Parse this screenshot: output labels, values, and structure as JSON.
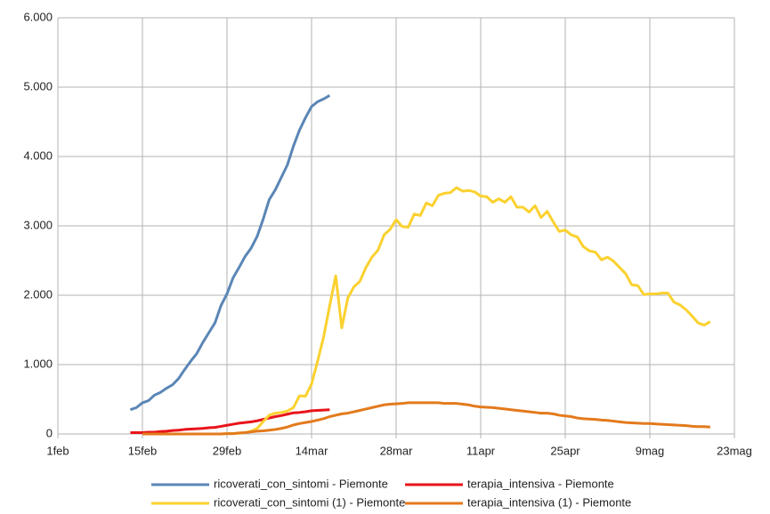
{
  "chart_data": {
    "type": "line",
    "x": [
      12,
      13,
      14,
      15,
      16,
      17,
      18,
      19,
      20,
      21,
      22,
      23,
      24,
      25,
      26,
      27,
      28,
      29,
      30,
      31,
      32,
      33,
      34,
      35,
      36,
      37,
      38,
      39,
      40,
      41,
      42,
      43,
      44,
      45,
      46,
      47,
      48,
      49,
      50,
      51,
      52,
      53,
      54,
      55,
      56,
      57,
      58,
      59,
      60,
      61,
      62,
      63,
      64,
      65,
      66,
      67,
      68,
      69,
      70,
      71,
      72,
      73,
      74,
      75,
      76,
      77,
      78,
      79,
      80,
      81,
      82,
      83,
      84,
      85,
      86,
      87,
      88,
      89,
      90,
      91,
      92,
      93,
      94,
      95,
      96,
      97,
      98,
      99,
      100,
      101,
      102,
      103,
      104,
      105,
      106,
      107,
      108
    ],
    "series": [
      {
        "name": "ricoverati_con_sintomi - Piemonte",
        "color": "#5a86b6",
        "values": [
          350,
          380,
          450,
          480,
          560,
          600,
          660,
          710,
          800,
          930,
          1050,
          1160,
          1320,
          1460,
          1600,
          1850,
          2020,
          2250,
          2400,
          2560,
          2680,
          2850,
          3100,
          3380,
          3520,
          3700,
          3880,
          4150,
          4380,
          4560,
          4720,
          4790,
          4830,
          4880,
          null,
          null,
          null,
          null,
          null,
          null,
          null,
          null,
          null,
          null,
          null,
          null,
          null,
          null,
          null,
          null,
          null,
          null,
          null,
          null,
          null,
          null,
          null,
          null,
          null,
          null,
          null,
          null,
          null,
          null,
          null,
          null,
          null,
          null,
          null,
          null,
          null,
          null,
          null,
          null,
          null,
          null,
          null,
          null,
          null,
          null,
          null,
          null,
          null,
          null,
          null,
          null,
          null,
          null,
          null,
          null,
          null,
          null,
          null,
          null,
          null,
          null,
          null
        ]
      },
      {
        "name": "terapia_intensiva - Piemonte",
        "color": "#e8141b",
        "values": [
          20,
          20,
          20,
          25,
          25,
          35,
          40,
          50,
          55,
          65,
          70,
          75,
          80,
          90,
          95,
          110,
          125,
          140,
          155,
          165,
          175,
          190,
          210,
          230,
          250,
          265,
          285,
          305,
          310,
          320,
          335,
          340,
          345,
          350,
          null,
          null,
          null,
          null,
          null,
          null,
          null,
          null,
          null,
          null,
          null,
          null,
          null,
          null,
          null,
          null,
          null,
          null,
          null,
          null,
          null,
          null,
          null,
          null,
          null,
          null,
          null,
          null,
          null,
          null,
          null,
          null,
          null,
          null,
          null,
          null,
          null,
          null,
          null,
          null,
          null,
          null,
          null,
          null,
          null,
          null,
          null,
          null,
          null,
          null,
          null,
          null,
          null,
          null,
          null,
          null,
          null,
          null,
          null,
          null,
          null,
          null,
          null
        ]
      },
      {
        "name": "ricoverati_con_sintomi (1) - Piemonte",
        "color": "#fbd12f",
        "values": [
          null,
          null,
          0,
          0,
          0,
          0,
          0,
          0,
          0,
          0,
          0,
          0,
          0,
          0,
          0,
          0,
          5,
          5,
          10,
          20,
          40,
          80,
          180,
          270,
          300,
          310,
          330,
          380,
          550,
          545,
          720,
          1050,
          1400,
          1850,
          2280,
          1530,
          1960,
          2120,
          2200,
          2400,
          2550,
          2650,
          2870,
          2950,
          3090,
          2990,
          2980,
          3170,
          3150,
          3330,
          3290,
          3440,
          3470,
          3480,
          3550,
          3500,
          3510,
          3490,
          3430,
          3420,
          3340,
          3390,
          3340,
          3420,
          3270,
          3270,
          3200,
          3290,
          3120,
          3210,
          3060,
          2920,
          2940,
          2870,
          2840,
          2700,
          2640,
          2620,
          2510,
          2550,
          2490,
          2400,
          2310,
          2150,
          2140,
          2010,
          2020,
          2020,
          2030,
          2030,
          1900,
          1860,
          1790,
          1700,
          1600,
          1570,
          1620
        ]
      },
      {
        "name": "terapia_intensiva (1) - Piemonte",
        "color": "#e37a1c",
        "values": [
          null,
          null,
          0,
          0,
          0,
          0,
          0,
          0,
          0,
          0,
          0,
          0,
          0,
          0,
          0,
          0,
          5,
          5,
          15,
          20,
          30,
          40,
          45,
          55,
          65,
          80,
          100,
          130,
          150,
          165,
          180,
          200,
          220,
          250,
          270,
          290,
          300,
          320,
          340,
          360,
          380,
          400,
          420,
          430,
          435,
          440,
          450,
          450,
          450,
          450,
          450,
          450,
          440,
          440,
          440,
          430,
          420,
          400,
          390,
          385,
          380,
          370,
          360,
          350,
          340,
          330,
          320,
          310,
          300,
          300,
          290,
          270,
          260,
          250,
          230,
          220,
          215,
          210,
          200,
          195,
          185,
          175,
          165,
          160,
          155,
          150,
          150,
          145,
          140,
          135,
          130,
          125,
          120,
          110,
          105,
          105,
          100
        ]
      }
    ],
    "xlim": [
      0,
      112
    ],
    "xticks": [
      {
        "value": 0,
        "label": "1feb"
      },
      {
        "value": 14,
        "label": "15feb"
      },
      {
        "value": 28,
        "label": "29feb"
      },
      {
        "value": 42,
        "label": "14mar"
      },
      {
        "value": 56,
        "label": "28mar"
      },
      {
        "value": 70,
        "label": "11apr"
      },
      {
        "value": 84,
        "label": "25apr"
      },
      {
        "value": 98,
        "label": "9mag"
      },
      {
        "value": 112,
        "label": "23mag"
      }
    ],
    "ylim": [
      0,
      6000
    ],
    "yticks": [
      0,
      {
        "value": 1000,
        "label": "1.000"
      },
      {
        "value": 2000,
        "label": "2.000"
      },
      {
        "value": 3000,
        "label": "3.000"
      },
      {
        "value": 4000,
        "label": "4.000"
      },
      {
        "value": 5000,
        "label": "5.000"
      },
      {
        "value": 6000,
        "label": "6.000"
      }
    ],
    "grid": true,
    "legend": "bottom"
  }
}
